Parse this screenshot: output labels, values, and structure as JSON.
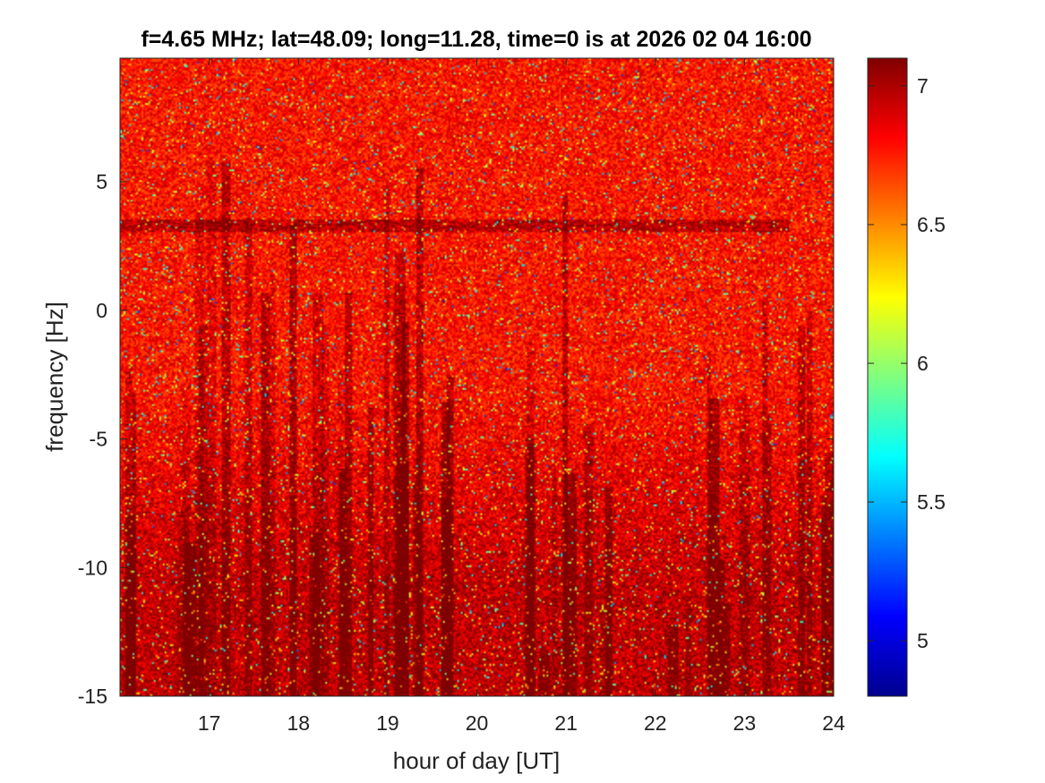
{
  "chart_data": {
    "type": "heatmap",
    "title": "f=4.65 MHz;  lat=48.09; long=11.28, time=0 is at 2026 02 04 16:00",
    "xlabel": "hour of day [UT]",
    "ylabel": "frequency [Hz]",
    "xlim": [
      16,
      24
    ],
    "ylim": [
      -15,
      9.8
    ],
    "x_ticks": [
      17,
      18,
      19,
      20,
      21,
      22,
      23,
      24
    ],
    "y_ticks": [
      -15,
      -10,
      -5,
      0,
      5
    ],
    "colorbar": {
      "colormap": "jet",
      "clim": [
        4.8,
        7.1
      ],
      "ticks": [
        5,
        5.5,
        6,
        6.5,
        7
      ]
    },
    "value_summary": {
      "background_level": 6.9,
      "noise_floor_min": 4.8
    },
    "features": {
      "doppler_trace_freq_hz": 3.3,
      "doppler_trace_xrange": [
        16,
        23.5
      ]
    }
  }
}
